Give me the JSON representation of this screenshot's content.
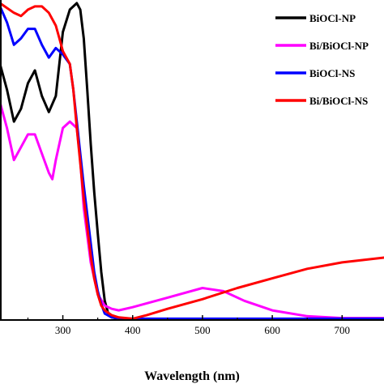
{
  "chart_data": {
    "type": "line",
    "title": "",
    "xlabel": "Wavelength (nm)",
    "ylabel": "",
    "xlim": [
      210,
      760
    ],
    "ylim": [
      0,
      1.0
    ],
    "xticks": [
      300,
      400,
      500,
      600,
      700
    ],
    "grid": false,
    "legend_position": "top-right",
    "series": [
      {
        "name": "BiOCl-NP",
        "color": "#000000",
        "x": [
          210,
          220,
          230,
          240,
          250,
          260,
          270,
          280,
          290,
          300,
          310,
          320,
          325,
          330,
          335,
          340,
          345,
          350,
          355,
          360,
          365,
          370,
          380,
          400,
          500,
          600,
          700,
          760
        ],
        "y": [
          0.8,
          0.72,
          0.62,
          0.66,
          0.74,
          0.78,
          0.7,
          0.65,
          0.7,
          0.9,
          0.97,
          0.99,
          0.97,
          0.88,
          0.72,
          0.55,
          0.4,
          0.27,
          0.15,
          0.06,
          0.02,
          0.008,
          0.004,
          0.003,
          0.003,
          0.003,
          0.003,
          0.003
        ]
      },
      {
        "name": "Bi/BiOCl-NP",
        "color": "#ff00ff",
        "x": [
          210,
          220,
          230,
          240,
          250,
          260,
          270,
          280,
          285,
          290,
          300,
          310,
          320,
          325,
          330,
          340,
          350,
          360,
          370,
          380,
          400,
          450,
          500,
          530,
          560,
          600,
          650,
          700,
          760
        ],
        "y": [
          0.68,
          0.6,
          0.5,
          0.54,
          0.58,
          0.58,
          0.52,
          0.46,
          0.44,
          0.5,
          0.6,
          0.62,
          0.6,
          0.5,
          0.35,
          0.18,
          0.08,
          0.045,
          0.035,
          0.03,
          0.04,
          0.07,
          0.1,
          0.09,
          0.06,
          0.03,
          0.012,
          0.006,
          0.006
        ]
      },
      {
        "name": "BiOCl-NS",
        "color": "#0000ff",
        "x": [
          210,
          220,
          230,
          240,
          250,
          260,
          270,
          280,
          290,
          300,
          310,
          315,
          320,
          330,
          340,
          345,
          350,
          355,
          360,
          370,
          380,
          400,
          500,
          600,
          700,
          760
        ],
        "y": [
          0.98,
          0.93,
          0.86,
          0.88,
          0.91,
          0.91,
          0.86,
          0.82,
          0.85,
          0.83,
          0.8,
          0.72,
          0.62,
          0.42,
          0.24,
          0.15,
          0.09,
          0.05,
          0.02,
          0.008,
          0.006,
          0.004,
          0.004,
          0.004,
          0.004,
          0.004
        ]
      },
      {
        "name": "Bi/BiOCl-NS",
        "color": "#ff0000",
        "x": [
          210,
          230,
          240,
          250,
          260,
          270,
          280,
          290,
          295,
          300,
          310,
          315,
          320,
          330,
          340,
          345,
          350,
          355,
          360,
          370,
          380,
          400,
          420,
          450,
          500,
          550,
          600,
          650,
          700,
          760
        ],
        "y": [
          0.99,
          0.96,
          0.95,
          0.97,
          0.98,
          0.98,
          0.96,
          0.92,
          0.88,
          0.84,
          0.8,
          0.72,
          0.6,
          0.38,
          0.2,
          0.13,
          0.08,
          0.045,
          0.03,
          0.015,
          0.008,
          0.004,
          0.015,
          0.035,
          0.065,
          0.1,
          0.13,
          0.16,
          0.18,
          0.195
        ]
      }
    ]
  }
}
